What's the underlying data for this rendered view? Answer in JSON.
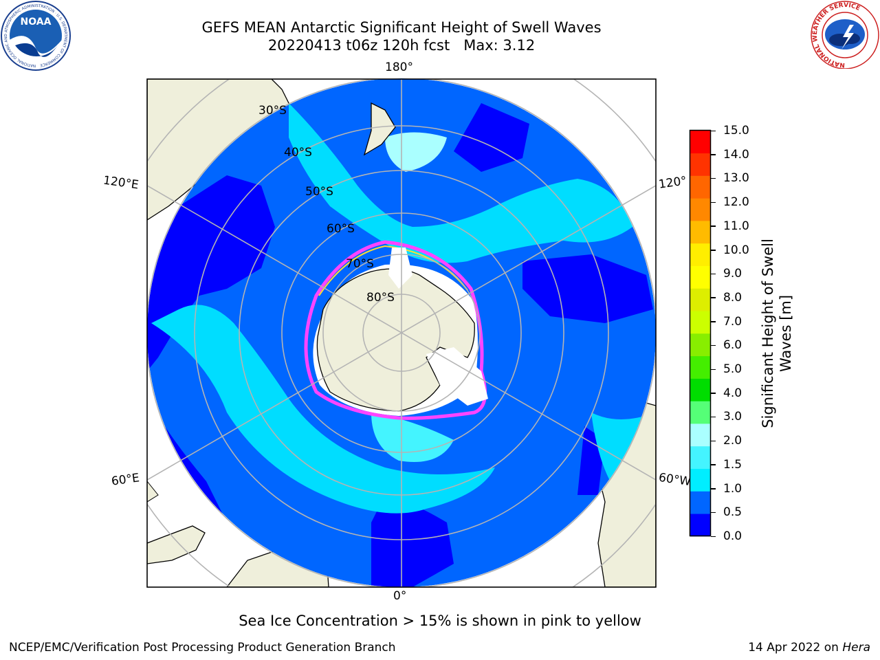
{
  "header": {
    "title_line1": "GEFS MEAN Antarctic Significant Height of Swell Waves",
    "run": "20220413 t06z 120h fcst",
    "max_label": "Max: 3.12"
  },
  "logos": {
    "left": "NOAA",
    "left_ring_text": "NATIONAL OCEANIC AND ATMOSPHERIC ADMINISTRATION · U.S. DEPARTMENT OF COMMERCE",
    "right_ring_text": "NATIONAL WEATHER SERVICE"
  },
  "map": {
    "projection": "south-polar-stereographic",
    "longitude_labels": [
      "180°",
      "120°E",
      "120°",
      "60°E",
      "60°W",
      "0°"
    ],
    "latitude_labels": [
      "30°S",
      "40°S",
      "50°S",
      "60°S",
      "70°S",
      "80°S"
    ],
    "colors": {
      "land": "#efefdb",
      "ocean_deep": "#0000ff",
      "ocean_mid": "#0066ff",
      "ocean_light": "#00ddff",
      "ocean_lighter": "#44f4ff",
      "ocean_pale": "#aaffff",
      "ice": "#ff44ff",
      "gridline": "#b4b4b4"
    }
  },
  "colorbar": {
    "label_line1": "Significant Height of Swell",
    "label_line2": "Waves [m]",
    "ticks": [
      "15.0",
      "14.0",
      "13.0",
      "12.0",
      "11.0",
      "10.0",
      "9.0",
      "8.0",
      "7.0",
      "6.0",
      "5.0",
      "4.0",
      "3.0",
      "2.0",
      "1.5",
      "1.0",
      "0.5",
      "0.0"
    ],
    "colors_bottom_to_top": [
      "#0000ff",
      "#0066ff",
      "#00eeff",
      "#44f4ff",
      "#aaffff",
      "#55ff77",
      "#00dd00",
      "#44ee00",
      "#88ee00",
      "#ccff00",
      "#ddee00",
      "#ffff00",
      "#ffee00",
      "#ffbb00",
      "#ff8800",
      "#ff6600",
      "#ff3300",
      "#ff0000"
    ]
  },
  "footer": {
    "note": "Sea Ice Concentration > 15% is shown in pink to yellow",
    "credit": "NCEP/EMC/Verification Post Processing Product Generation Branch",
    "date": "14 Apr 2022 on ",
    "machine": "Hera"
  }
}
